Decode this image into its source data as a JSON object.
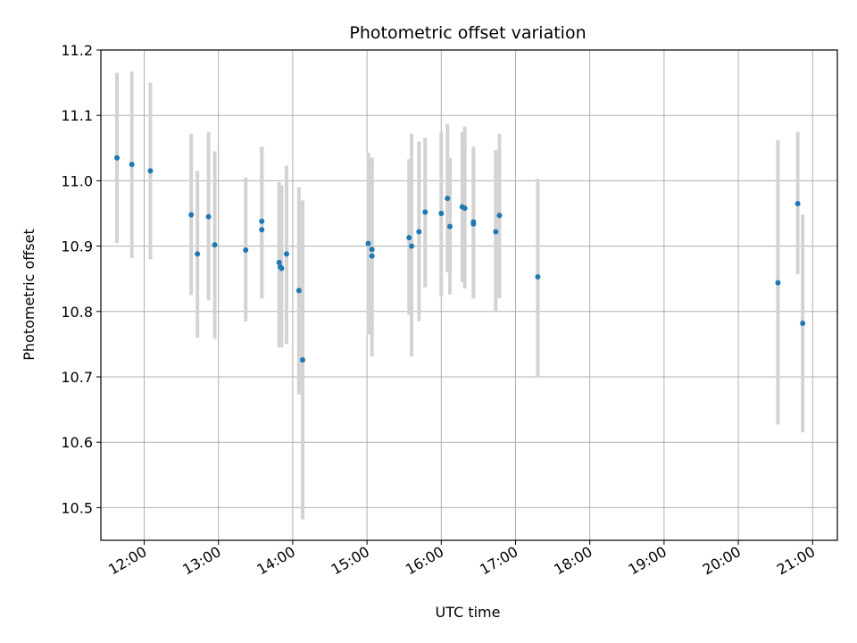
{
  "chart_data": {
    "type": "scatter",
    "title": "Photometric offset variation",
    "xlabel": "UTC time",
    "ylabel": "Photometric offset",
    "xlim": [
      "11:25",
      "21:20"
    ],
    "ylim": [
      10.45,
      11.2
    ],
    "xticks": [
      "12:00",
      "13:00",
      "14:00",
      "15:00",
      "16:00",
      "17:00",
      "18:00",
      "19:00",
      "20:00",
      "21:00"
    ],
    "yticks": [
      "10.5",
      "10.6",
      "10.7",
      "10.8",
      "10.9",
      "11.0",
      "11.1",
      "11.2"
    ],
    "grid": true,
    "marker_color": "#1f77b4",
    "errorbar_color": "#d3d3d3",
    "points": [
      {
        "x": "11:38",
        "y": 11.035,
        "ylo": 10.905,
        "yhi": 11.165
      },
      {
        "x": "11:50",
        "y": 11.025,
        "ylo": 10.882,
        "yhi": 11.167
      },
      {
        "x": "12:05",
        "y": 11.015,
        "ylo": 10.88,
        "yhi": 11.15
      },
      {
        "x": "12:38",
        "y": 10.948,
        "ylo": 10.825,
        "yhi": 11.072
      },
      {
        "x": "12:43",
        "y": 10.888,
        "ylo": 10.76,
        "yhi": 11.015
      },
      {
        "x": "12:52",
        "y": 10.945,
        "ylo": 10.817,
        "yhi": 11.075
      },
      {
        "x": "12:57",
        "y": 10.902,
        "ylo": 10.758,
        "yhi": 11.045
      },
      {
        "x": "13:22",
        "y": 10.894,
        "ylo": 10.785,
        "yhi": 11.005
      },
      {
        "x": "13:35",
        "y": 10.938,
        "ylo": 10.82,
        "yhi": 11.052
      },
      {
        "x": "13:35",
        "y": 10.925,
        "ylo": 10.82,
        "yhi": 11.052
      },
      {
        "x": "13:49",
        "y": 10.875,
        "ylo": 10.745,
        "yhi": 10.998
      },
      {
        "x": "13:50",
        "y": 10.868,
        "ylo": 10.745,
        "yhi": 10.993
      },
      {
        "x": "13:51",
        "y": 10.866,
        "ylo": 10.745,
        "yhi": 10.993
      },
      {
        "x": "13:55",
        "y": 10.888,
        "ylo": 10.75,
        "yhi": 11.023
      },
      {
        "x": "14:05",
        "y": 10.832,
        "ylo": 10.673,
        "yhi": 10.99
      },
      {
        "x": "14:08",
        "y": 10.726,
        "ylo": 10.482,
        "yhi": 10.97
      },
      {
        "x": "15:01",
        "y": 10.904,
        "ylo": 10.765,
        "yhi": 11.043
      },
      {
        "x": "15:04",
        "y": 10.895,
        "ylo": 10.731,
        "yhi": 11.035
      },
      {
        "x": "15:04",
        "y": 10.885,
        "ylo": 10.763,
        "yhi": 11.03
      },
      {
        "x": "15:34",
        "y": 10.913,
        "ylo": 10.795,
        "yhi": 11.033
      },
      {
        "x": "15:36",
        "y": 10.9,
        "ylo": 10.731,
        "yhi": 11.072
      },
      {
        "x": "15:42",
        "y": 10.922,
        "ylo": 10.785,
        "yhi": 11.06
      },
      {
        "x": "15:47",
        "y": 10.952,
        "ylo": 10.837,
        "yhi": 11.066
      },
      {
        "x": "16:00",
        "y": 10.95,
        "ylo": 10.823,
        "yhi": 11.075
      },
      {
        "x": "16:05",
        "y": 10.973,
        "ylo": 10.86,
        "yhi": 11.087
      },
      {
        "x": "16:07",
        "y": 10.93,
        "ylo": 10.826,
        "yhi": 11.035
      },
      {
        "x": "16:17",
        "y": 10.96,
        "ylo": 10.845,
        "yhi": 11.075
      },
      {
        "x": "16:19",
        "y": 10.958,
        "ylo": 10.835,
        "yhi": 11.083
      },
      {
        "x": "16:26",
        "y": 10.937,
        "ylo": 10.82,
        "yhi": 11.052
      },
      {
        "x": "16:26",
        "y": 10.934,
        "ylo": 10.82,
        "yhi": 11.045
      },
      {
        "x": "16:44",
        "y": 10.922,
        "ylo": 10.8,
        "yhi": 11.047
      },
      {
        "x": "16:47",
        "y": 10.947,
        "ylo": 10.82,
        "yhi": 11.072
      },
      {
        "x": "17:18",
        "y": 10.853,
        "ylo": 10.7,
        "yhi": 11.003
      },
      {
        "x": "20:32",
        "y": 10.844,
        "ylo": 10.627,
        "yhi": 11.062
      },
      {
        "x": "20:48",
        "y": 10.965,
        "ylo": 10.857,
        "yhi": 11.075
      },
      {
        "x": "20:52",
        "y": 10.782,
        "ylo": 10.615,
        "yhi": 10.948
      }
    ]
  }
}
